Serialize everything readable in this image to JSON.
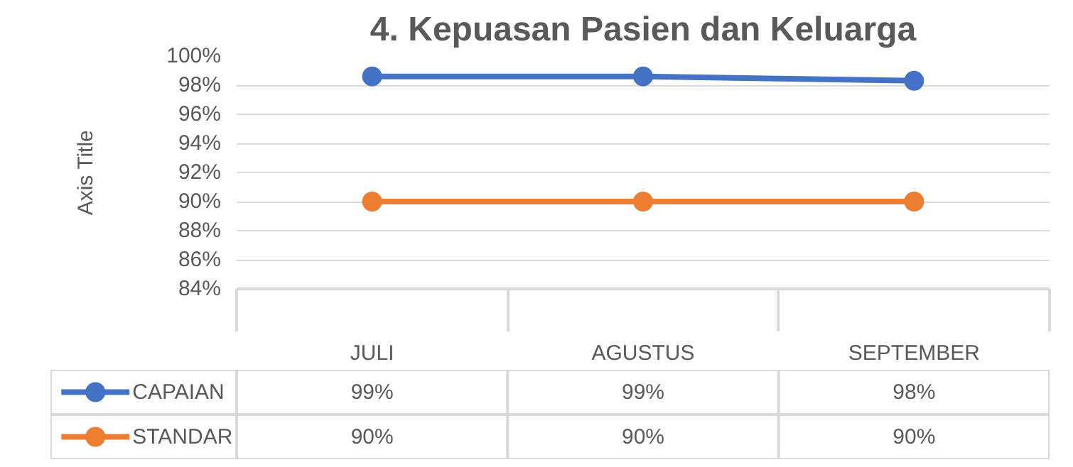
{
  "chart_data": {
    "type": "line",
    "title": "4. Kepuasan Pasien dan Keluarga",
    "ylabel": "Axis Title",
    "categories": [
      "JULI",
      "AGUSTUS",
      "SEPTEMBER"
    ],
    "series": [
      {
        "name": "CAPAIAN",
        "color": "#4472c4",
        "values": [
          98.6,
          98.6,
          98.3
        ],
        "value_labels": [
          "99%",
          "99%",
          "98%"
        ]
      },
      {
        "name": "STANDAR",
        "color": "#ed7d31",
        "values": [
          90,
          90,
          90
        ],
        "value_labels": [
          "90%",
          "90%",
          "90%"
        ]
      }
    ],
    "ylim": [
      84,
      100
    ],
    "yticks": [
      {
        "value": 84,
        "label": "84%"
      },
      {
        "value": 86,
        "label": "86%"
      },
      {
        "value": 88,
        "label": "88%"
      },
      {
        "value": 90,
        "label": "90%"
      },
      {
        "value": 92,
        "label": "92%"
      },
      {
        "value": 94,
        "label": "94%"
      },
      {
        "value": 96,
        "label": "96%"
      },
      {
        "value": 98,
        "label": "98%"
      },
      {
        "value": 100,
        "label": "100%"
      }
    ],
    "grid": "y",
    "legend": "bottom",
    "marker": "circle",
    "line_style": "solid"
  }
}
